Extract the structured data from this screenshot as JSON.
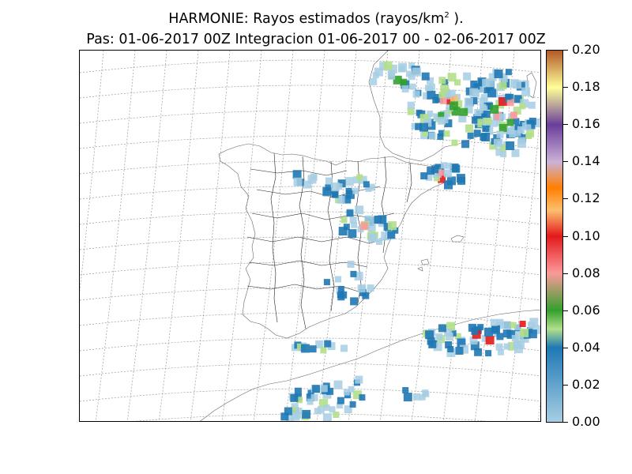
{
  "title": {
    "line1_main": "HARMONIE: Rayos estimados  (rayos/km",
    "line1_sup": "2",
    "line1_end": " ).",
    "line2": "Pas: 01-06-2017 00Z Integracion 01-06-2017 00 - 02-06-2017 00Z"
  },
  "colorbar": {
    "ticks": [
      "0.00",
      "0.02",
      "0.04",
      "0.06",
      "0.08",
      "0.10",
      "0.12",
      "0.14",
      "0.16",
      "0.18",
      "0.20"
    ],
    "range": [
      0.0,
      0.2
    ],
    "colors": [
      "#a6cee3",
      "#1f78b4",
      "#b2df8a",
      "#33a02c",
      "#fb9a99",
      "#e31a1c",
      "#fdbf6f",
      "#ff7f00",
      "#cab2d6",
      "#6a3d9a",
      "#ffff99",
      "#b15928"
    ]
  },
  "map": {
    "projection": "conic",
    "graticule": "dotted-gray",
    "region": "Iberian Peninsula"
  }
}
